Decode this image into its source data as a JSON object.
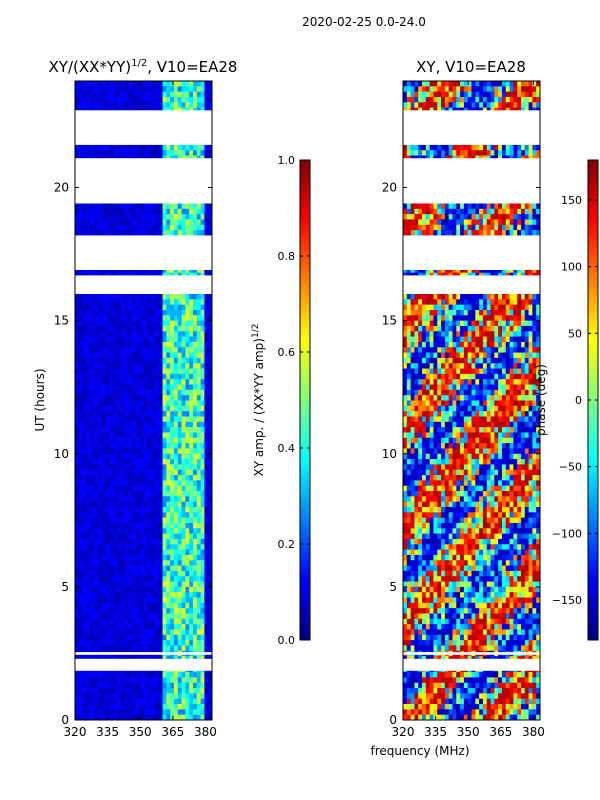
{
  "figure": {
    "suptitle": "2020-02-25 0.0-24.0",
    "shared_xlabel": "frequency (MHz)"
  },
  "colors": {
    "jet": [
      "#00007f",
      "#0000ff",
      "#007fff",
      "#00ffff",
      "#7fff7f",
      "#ffff00",
      "#ff7f00",
      "#ff0000",
      "#7f0000"
    ],
    "background": "#ffffff",
    "axis": "#000000"
  },
  "chart_data": [
    {
      "type": "heatmap",
      "title_prefix": "XY/(XX*YY)",
      "title_exponent": "1/2",
      "title_suffix": ", V10=EA28",
      "xlabel": "",
      "ylabel": "UT (hours)",
      "x_ticks": [
        "320",
        "335",
        "350",
        "365",
        "380"
      ],
      "x_tick_values": [
        320,
        335,
        350,
        365,
        380
      ],
      "xlim": [
        320,
        383
      ],
      "y_ticks": [
        "0",
        "5",
        "10",
        "15",
        "20"
      ],
      "y_tick_values": [
        0,
        5,
        10,
        15,
        20
      ],
      "ylim": [
        0,
        24
      ],
      "colorbar": {
        "label_prefix": "XY amp. / (XX*YY amp)",
        "label_exponent": "1/2",
        "ticks": [
          "0.0",
          "0.2",
          "0.4",
          "0.6",
          "0.8",
          "1.0"
        ],
        "tick_values": [
          0.0,
          0.2,
          0.4,
          0.6,
          0.8,
          1.0
        ],
        "range": [
          0.0,
          1.0
        ]
      },
      "data_gaps_hours": [
        [
          1.85,
          2.3
        ],
        [
          2.45,
          2.55
        ],
        [
          16.0,
          16.7
        ],
        [
          16.9,
          18.2
        ],
        [
          19.4,
          21.1
        ],
        [
          21.6,
          22.9
        ]
      ],
      "bright_band_MHz": [
        360,
        380
      ],
      "description_of_values": "low amplitude (~0.1) below 360 MHz, 0.3-0.6 in 360-380 MHz band"
    },
    {
      "type": "heatmap",
      "title": "XY, V10=EA28",
      "xlabel": "",
      "ylabel": "",
      "x_ticks": [
        "320",
        "335",
        "350",
        "365",
        "380"
      ],
      "x_tick_values": [
        320,
        335,
        350,
        365,
        380
      ],
      "xlim": [
        320,
        383
      ],
      "y_ticks": [
        "0",
        "5",
        "10",
        "15",
        "20"
      ],
      "y_tick_values": [
        0,
        5,
        10,
        15,
        20
      ],
      "ylim": [
        0,
        24
      ],
      "colorbar": {
        "label": "phase (deg)",
        "ticks": [
          "−150",
          "−100",
          "−50",
          "0",
          "50",
          "100",
          "150"
        ],
        "tick_values": [
          -150,
          -100,
          -50,
          0,
          50,
          100,
          150
        ],
        "range": [
          -180,
          180
        ]
      },
      "data_gaps_hours": [
        [
          1.85,
          2.3
        ],
        [
          2.45,
          2.55
        ],
        [
          16.0,
          16.7
        ],
        [
          16.9,
          18.2
        ],
        [
          19.4,
          21.1
        ],
        [
          21.6,
          22.9
        ]
      ],
      "description_of_values": "phase varies over full -180..180 deg range"
    }
  ]
}
